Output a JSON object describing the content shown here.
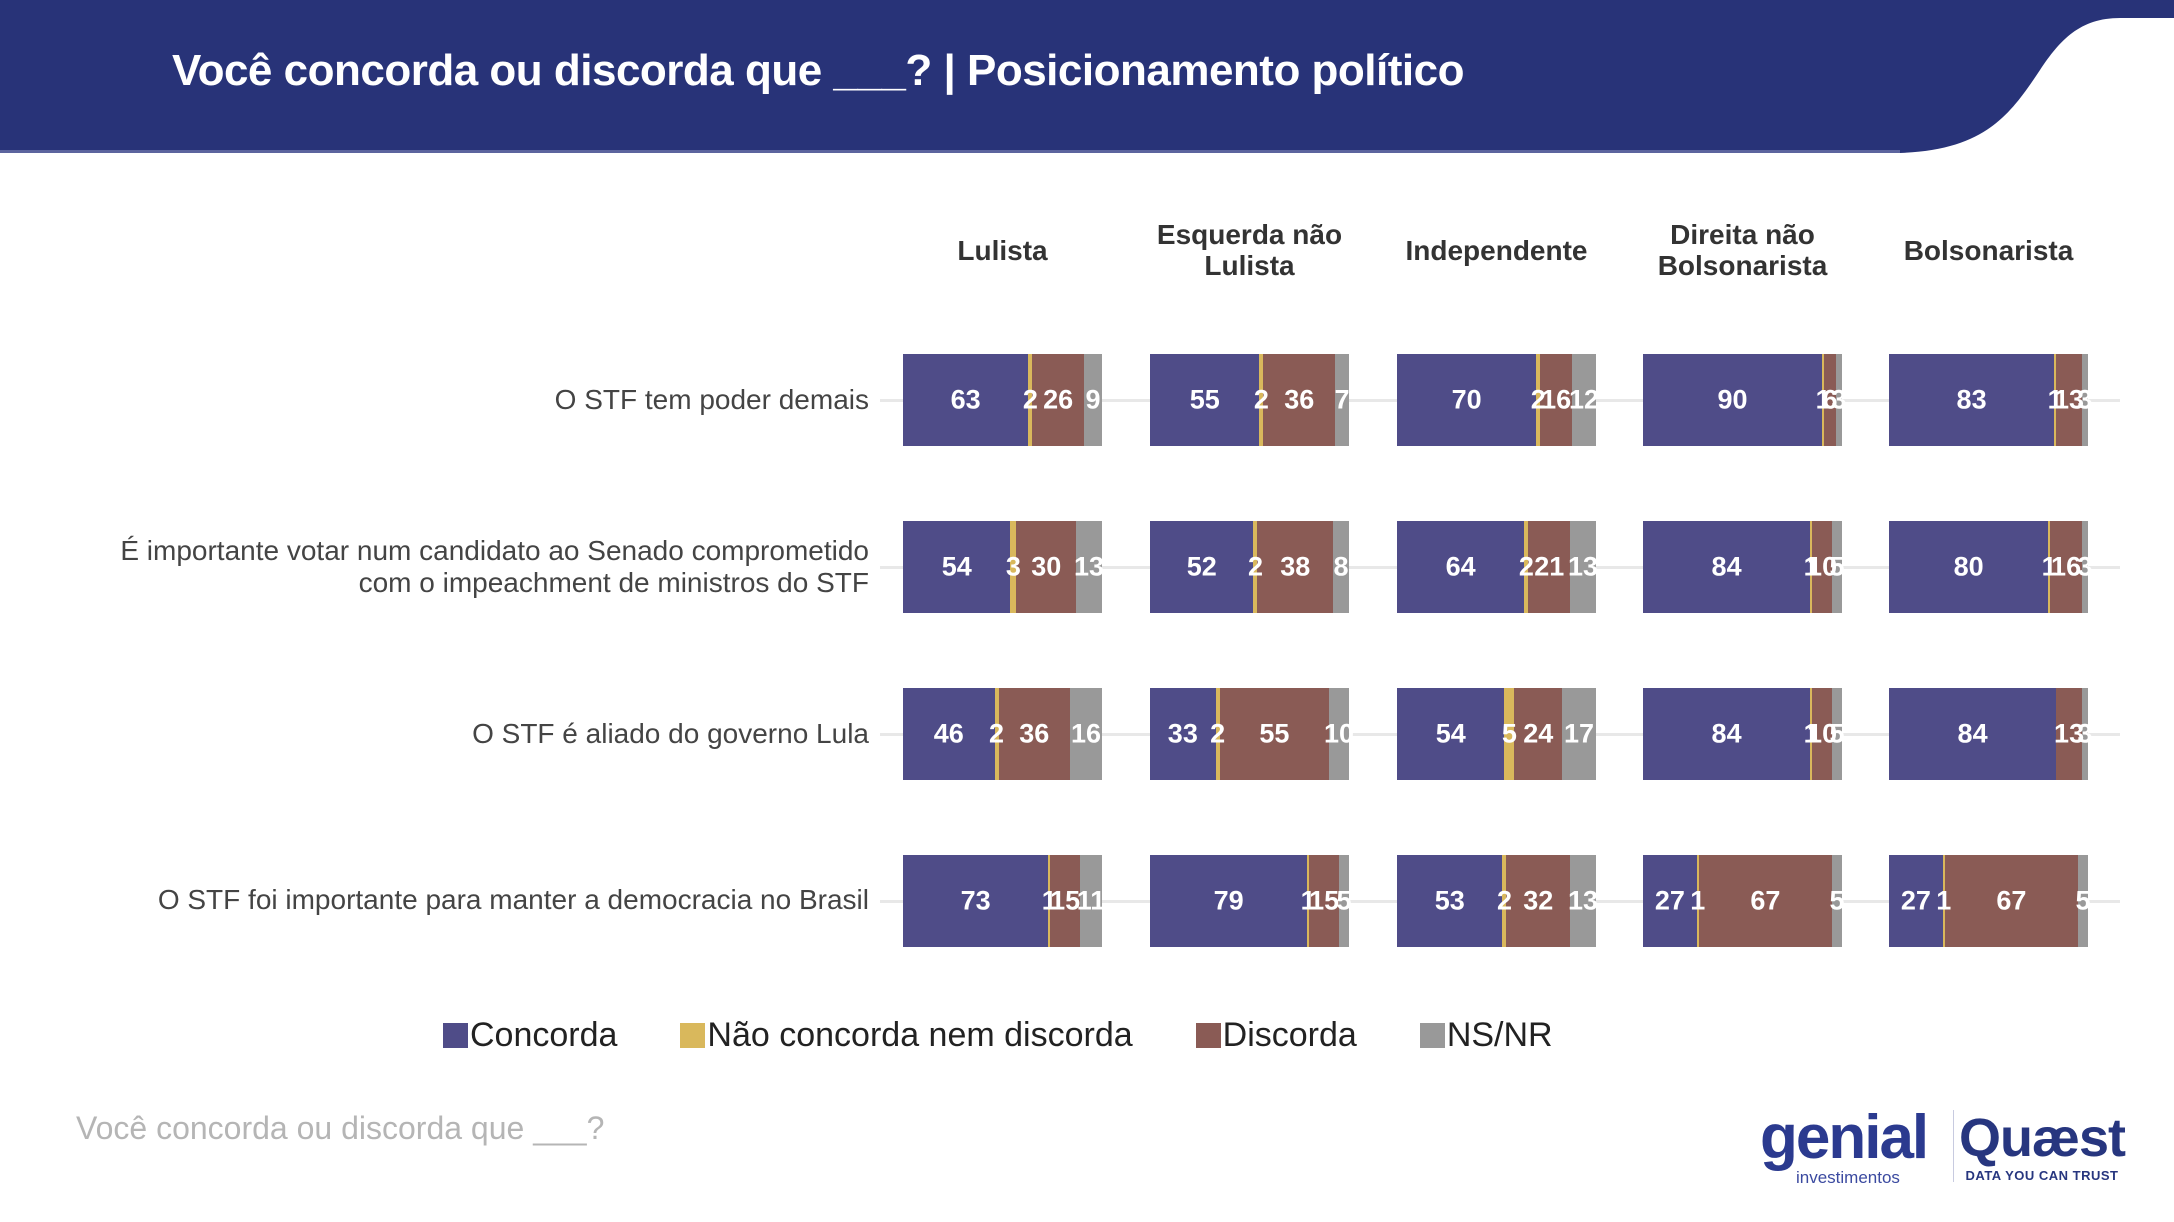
{
  "header": {
    "title": "Você concorda ou discorda que ___? | Posicionamento político",
    "band_color": "#283378"
  },
  "footer": {
    "note": "Você concorda ou discorda que ___?",
    "logos": {
      "genial_main": "genial",
      "genial_sub": "investimentos",
      "quaest_main": "Quæst",
      "quaest_sub": "DATA YOU CAN TRUST"
    }
  },
  "chart_data": {
    "type": "bar",
    "orientation": "horizontal-stacked-100",
    "title": "Você concorda ou discorda que ___? | Posicionamento político",
    "groups": [
      "Lulista",
      "Esquerda não Lulista",
      "Independente",
      "Direita não Bolsonarista",
      "Bolsonarista"
    ],
    "categories": [
      "O STF tem poder demais",
      "É importante votar num candidato ao Senado comprometido com o impeachment de ministros do STF",
      "O STF é aliado do governo Lula",
      "O STF foi importante para manter a democracia no Brasil"
    ],
    "series_names": [
      "Concorda",
      "Não concorda nem discorda",
      "Discorda",
      "NS/NR"
    ],
    "series_colors": [
      "#4f4c88",
      "#d9b85c",
      "#8a5b55",
      "#999999"
    ],
    "values": [
      [
        [
          63,
          2,
          26,
          9
        ],
        [
          55,
          2,
          36,
          7
        ],
        [
          70,
          2,
          16,
          12
        ],
        [
          90,
          1,
          6,
          3
        ],
        [
          83,
          1,
          13,
          3
        ]
      ],
      [
        [
          54,
          3,
          30,
          13
        ],
        [
          52,
          2,
          38,
          8
        ],
        [
          64,
          2,
          21,
          13
        ],
        [
          84,
          1,
          10,
          5
        ],
        [
          80,
          1,
          16,
          3
        ]
      ],
      [
        [
          46,
          2,
          36,
          16
        ],
        [
          33,
          2,
          55,
          10
        ],
        [
          54,
          5,
          24,
          17
        ],
        [
          84,
          1,
          10,
          5
        ],
        [
          84,
          0,
          13,
          3
        ]
      ],
      [
        [
          73,
          1,
          15,
          11
        ],
        [
          79,
          1,
          15,
          5
        ],
        [
          53,
          2,
          32,
          13
        ],
        [
          27,
          1,
          67,
          5
        ],
        [
          27,
          1,
          67,
          5
        ]
      ]
    ],
    "xlim": [
      0,
      100
    ],
    "legend": {
      "position": "bottom",
      "labels": [
        "Concorda",
        "Não concorda nem discorda",
        "Discorda",
        "NS/NR"
      ]
    },
    "grid": false
  }
}
